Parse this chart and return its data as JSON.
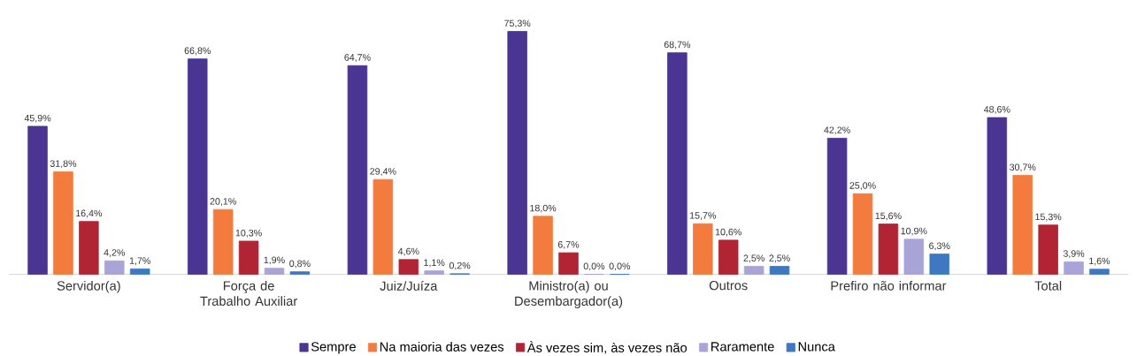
{
  "chart_data": {
    "type": "bar",
    "categories": [
      "Servidor(a)",
      "Força de Trabalho Auxiliar",
      "Juiz/Juíza",
      "Ministro(a) ou Desembargador(a)",
      "Outros",
      "Prefiro não informar",
      "Total"
    ],
    "series": [
      {
        "name": "Sempre",
        "color": "#4a3593",
        "values": [
          45.9,
          66.8,
          64.7,
          75.3,
          68.7,
          42.2,
          48.6
        ],
        "value_labels": [
          "45,9%",
          "66,8%",
          "64,7%",
          "75,3%",
          "68,7%",
          "42,2%",
          "48,6%"
        ]
      },
      {
        "name": "Na maioria das vezes",
        "color": "#f47b3e",
        "values": [
          31.8,
          20.1,
          29.4,
          18.0,
          15.7,
          25.0,
          30.7
        ],
        "value_labels": [
          "31,8%",
          "20,1%",
          "29,4%",
          "18,0%",
          "15,7%",
          "25,0%",
          "30,7%"
        ]
      },
      {
        "name": "Às vezes sim, às vezes não",
        "color": "#b12434",
        "values": [
          16.4,
          10.3,
          4.6,
          6.7,
          10.6,
          15.6,
          15.3
        ],
        "value_labels": [
          "16,4%",
          "10,3%",
          "4,6%",
          "6,7%",
          "10,6%",
          "15,6%",
          "15,3%"
        ]
      },
      {
        "name": "Raramente",
        "color": "#a9a4d8",
        "values": [
          4.2,
          1.9,
          1.1,
          0.0,
          2.5,
          10.9,
          3.9
        ],
        "value_labels": [
          "4,2%",
          "1,9%",
          "1,1%",
          "0,0%",
          "2,5%",
          "10,9%",
          "3,9%"
        ]
      },
      {
        "name": "Nunca",
        "color": "#3e77c2",
        "values": [
          1.7,
          0.8,
          0.2,
          0.0,
          2.5,
          6.3,
          1.6
        ],
        "value_labels": [
          "1,7%",
          "0,8%",
          "0,2%",
          "0,0%",
          "2,5%",
          "6,3%",
          "1,6%"
        ]
      }
    ],
    "legend": "bottom"
  }
}
